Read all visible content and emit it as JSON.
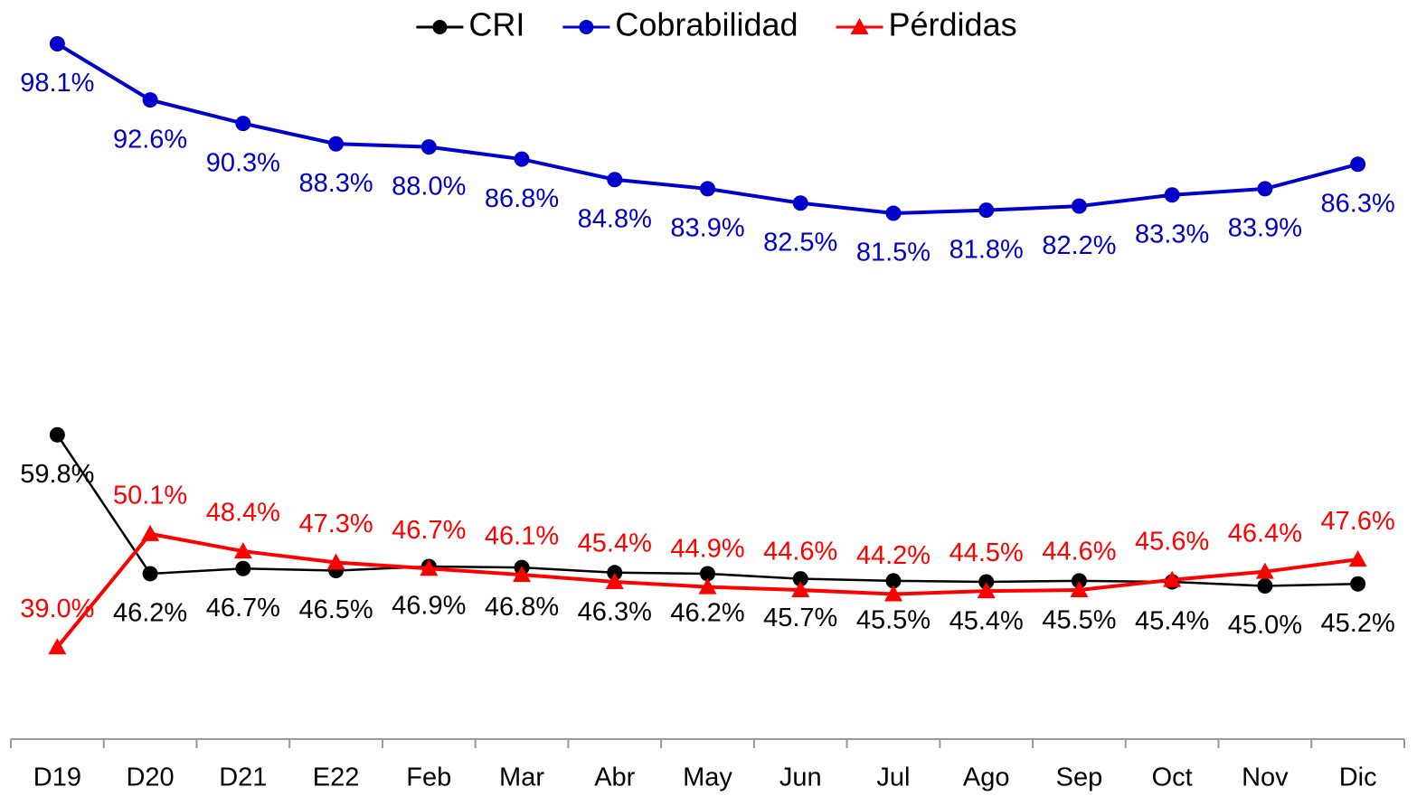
{
  "chart_data": {
    "type": "line",
    "categories": [
      "D19",
      "D20",
      "D21",
      "E22",
      "Feb",
      "Mar",
      "Abr",
      "May",
      "Jun",
      "Jul",
      "Ago",
      "Sep",
      "Oct",
      "Nov",
      "Dic"
    ],
    "ylim": [
      30,
      100
    ],
    "legend": "top",
    "series": [
      {
        "name": "CRI",
        "color": "#000000",
        "marker": "circle",
        "values": [
          59.8,
          46.2,
          46.7,
          46.5,
          46.9,
          46.8,
          46.3,
          46.2,
          45.7,
          45.5,
          45.4,
          45.5,
          45.4,
          45.0,
          45.2
        ],
        "value_labels": [
          "59.8%",
          "46.2%",
          "46.7%",
          "46.5%",
          "46.9%",
          "46.8%",
          "46.3%",
          "46.2%",
          "45.7%",
          "45.5%",
          "45.4%",
          "45.5%",
          "45.4%",
          "45.0%",
          "45.2%"
        ]
      },
      {
        "name": "Cobrabilidad",
        "color": "#0000cc",
        "marker": "circle",
        "values": [
          98.1,
          92.6,
          90.3,
          88.3,
          88.0,
          86.8,
          84.8,
          83.9,
          82.5,
          81.5,
          81.8,
          82.2,
          83.3,
          83.9,
          86.3
        ],
        "value_labels": [
          "98.1%",
          "92.6%",
          "90.3%",
          "88.3%",
          "88.0%",
          "86.8%",
          "84.8%",
          "83.9%",
          "82.5%",
          "81.5%",
          "81.8%",
          "82.2%",
          "83.3%",
          "83.9%",
          "86.3%"
        ]
      },
      {
        "name": "Pérdidas",
        "color": "#ff0000",
        "marker": "triangle",
        "values": [
          39.0,
          50.1,
          48.4,
          47.3,
          46.7,
          46.1,
          45.4,
          44.9,
          44.6,
          44.2,
          44.5,
          44.6,
          45.6,
          46.4,
          47.6
        ],
        "value_labels": [
          "39.0%",
          "50.1%",
          "48.4%",
          "47.3%",
          "46.7%",
          "46.1%",
          "45.4%",
          "44.9%",
          "44.6%",
          "44.2%",
          "44.5%",
          "44.6%",
          "45.6%",
          "46.4%",
          "47.6%"
        ]
      }
    ]
  }
}
